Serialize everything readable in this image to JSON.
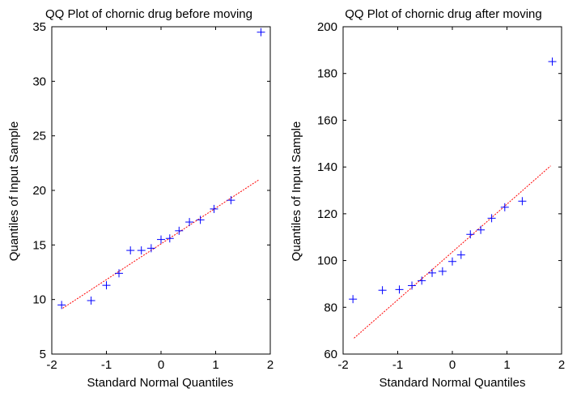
{
  "chart_data": [
    {
      "type": "scatter",
      "title": "QQ Plot of chornic drug before moving",
      "xlabel": "Standard Normal Quantiles",
      "ylabel": "Quantiles of Input Sample",
      "xlim": [
        -2,
        2
      ],
      "ylim": [
        5,
        35
      ],
      "xticks": [
        -2,
        -1,
        0,
        1,
        2
      ],
      "yticks": [
        5,
        10,
        15,
        20,
        25,
        30,
        35
      ],
      "marker": "plus",
      "marker_color": "#0000ff",
      "reference_line": {
        "x": [
          -1.8,
          1.8
        ],
        "y": [
          9.2,
          21.0
        ],
        "color": "#ff0000",
        "style": "dashed"
      },
      "points": [
        {
          "x": -1.82,
          "y": 9.5
        },
        {
          "x": -1.28,
          "y": 9.9
        },
        {
          "x": -1.0,
          "y": 11.3
        },
        {
          "x": -0.77,
          "y": 12.4
        },
        {
          "x": -0.56,
          "y": 14.5
        },
        {
          "x": -0.36,
          "y": 14.5
        },
        {
          "x": -0.18,
          "y": 14.7
        },
        {
          "x": 0.0,
          "y": 15.5
        },
        {
          "x": 0.16,
          "y": 15.6
        },
        {
          "x": 0.33,
          "y": 16.3
        },
        {
          "x": 0.52,
          "y": 17.1
        },
        {
          "x": 0.72,
          "y": 17.3
        },
        {
          "x": 0.97,
          "y": 18.3
        },
        {
          "x": 1.28,
          "y": 19.1
        },
        {
          "x": 1.83,
          "y": 34.5
        }
      ],
      "grid": false
    },
    {
      "type": "scatter",
      "title": "QQ Plot of chornic drug after moving",
      "xlabel": "Standard Normal Quantiles",
      "ylabel": "Quantiles of Input Sample",
      "xlim": [
        -2,
        2
      ],
      "ylim": [
        60,
        200
      ],
      "xticks": [
        -2,
        -1,
        0,
        1,
        2
      ],
      "yticks": [
        60,
        80,
        100,
        120,
        140,
        160,
        180,
        200
      ],
      "marker": "plus",
      "marker_color": "#0000ff",
      "reference_line": {
        "x": [
          -1.8,
          1.8
        ],
        "y": [
          66.8,
          140.5
        ],
        "color": "#ff0000",
        "style": "dashed"
      },
      "points": [
        {
          "x": -1.82,
          "y": 83.5
        },
        {
          "x": -1.28,
          "y": 87.3
        },
        {
          "x": -0.97,
          "y": 87.6
        },
        {
          "x": -0.74,
          "y": 89.3
        },
        {
          "x": -0.56,
          "y": 91.4
        },
        {
          "x": -0.37,
          "y": 94.7
        },
        {
          "x": -0.18,
          "y": 95.4
        },
        {
          "x": 0.0,
          "y": 99.6
        },
        {
          "x": 0.16,
          "y": 102.4
        },
        {
          "x": 0.33,
          "y": 111.2
        },
        {
          "x": 0.52,
          "y": 113.1
        },
        {
          "x": 0.72,
          "y": 118.1
        },
        {
          "x": 0.96,
          "y": 122.8
        },
        {
          "x": 1.28,
          "y": 125.4
        },
        {
          "x": 1.83,
          "y": 185.1
        }
      ],
      "grid": false
    }
  ]
}
